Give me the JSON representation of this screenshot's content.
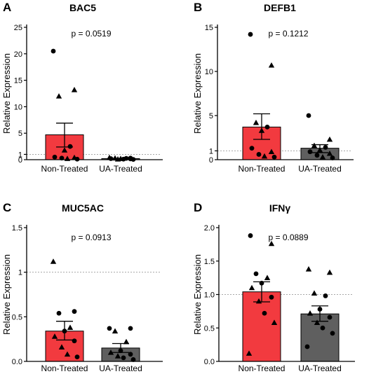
{
  "colors": {
    "non_treated_bar": "#f23a3f",
    "ua_treated_bar": "#5f5f5f",
    "ref_line": "#a8a8a8",
    "axis": "#000000"
  },
  "chart_data": [
    {
      "panel": "A",
      "type": "bar",
      "title": "BAC5",
      "ylabel": "Relative Expression",
      "pvalue": "p = 0.0519",
      "categories": [
        "Non-Treated",
        "UA-Treated"
      ],
      "ylim": [
        0,
        25
      ],
      "yticks": [
        0,
        1,
        5,
        10,
        15,
        20,
        25
      ],
      "reference_line": 1,
      "bars": [
        {
          "category": "Non-Treated",
          "mean": 4.7,
          "sem_low": 2.4,
          "sem_high": 6.9,
          "points": [
            {
              "y": 20.5,
              "shape": "circle"
            },
            {
              "y": 13.2,
              "shape": "triangle"
            },
            {
              "y": 12.0,
              "shape": "triangle"
            },
            {
              "y": 2.5,
              "shape": "circle"
            },
            {
              "y": 1.8,
              "shape": "triangle"
            },
            {
              "y": 0.5,
              "shape": "circle"
            },
            {
              "y": 0.4,
              "shape": "triangle"
            },
            {
              "y": 0.3,
              "shape": "circle"
            },
            {
              "y": 0.2,
              "shape": "triangle"
            },
            {
              "y": 0.1,
              "shape": "circle"
            }
          ]
        },
        {
          "category": "UA-Treated",
          "mean": 0.2,
          "sem_low": 0.15,
          "sem_high": 0.25,
          "points": [
            {
              "y": 0.4,
              "shape": "triangle"
            },
            {
              "y": 0.3,
              "shape": "circle"
            },
            {
              "y": 0.3,
              "shape": "triangle"
            },
            {
              "y": 0.25,
              "shape": "circle"
            },
            {
              "y": 0.2,
              "shape": "triangle"
            },
            {
              "y": 0.2,
              "shape": "circle"
            },
            {
              "y": 0.15,
              "shape": "circle"
            },
            {
              "y": 0.1,
              "shape": "triangle"
            },
            {
              "y": 0.1,
              "shape": "circle"
            },
            {
              "y": 0.05,
              "shape": "circle"
            }
          ]
        }
      ]
    },
    {
      "panel": "B",
      "type": "bar",
      "title": "DEFB1",
      "ylabel": "Relative Expression",
      "pvalue": "p = 0.1212",
      "categories": [
        "Non-Treated",
        "UA-Treated"
      ],
      "ylim": [
        0,
        15
      ],
      "yticks": [
        0,
        1,
        5,
        10,
        15
      ],
      "reference_line": 1,
      "bars": [
        {
          "category": "Non-Treated",
          "mean": 3.7,
          "sem_low": 2.3,
          "sem_high": 5.2,
          "points": [
            {
              "y": 14.2,
              "shape": "circle"
            },
            {
              "y": 10.7,
              "shape": "triangle"
            },
            {
              "y": 4.2,
              "shape": "triangle"
            },
            {
              "y": 3.7,
              "shape": "circle"
            },
            {
              "y": 3.3,
              "shape": "triangle"
            },
            {
              "y": 1.3,
              "shape": "circle"
            },
            {
              "y": 0.9,
              "shape": "triangle"
            },
            {
              "y": 0.6,
              "shape": "circle"
            },
            {
              "y": 0.4,
              "shape": "triangle"
            },
            {
              "y": 0.3,
              "shape": "circle"
            }
          ]
        },
        {
          "category": "UA-Treated",
          "mean": 1.3,
          "sem_low": 0.8,
          "sem_high": 1.7,
          "points": [
            {
              "y": 5.0,
              "shape": "circle"
            },
            {
              "y": 2.3,
              "shape": "triangle"
            },
            {
              "y": 1.6,
              "shape": "triangle"
            },
            {
              "y": 1.4,
              "shape": "circle"
            },
            {
              "y": 1.1,
              "shape": "triangle"
            },
            {
              "y": 0.9,
              "shape": "circle"
            },
            {
              "y": 0.7,
              "shape": "triangle"
            },
            {
              "y": 0.5,
              "shape": "circle"
            },
            {
              "y": 0.3,
              "shape": "triangle"
            },
            {
              "y": 0.2,
              "shape": "circle"
            }
          ]
        }
      ]
    },
    {
      "panel": "C",
      "type": "bar",
      "title": "MUC5AC",
      "ylabel": "Relative Expression",
      "pvalue": "p = 0.0913",
      "categories": [
        "Non-Treated",
        "UA-Treated"
      ],
      "ylim": [
        0,
        1.5
      ],
      "yticks": [
        0.0,
        0.5,
        1.0,
        1.5
      ],
      "yticklabels": [
        "0.0",
        "0.5",
        "1",
        "1.5"
      ],
      "reference_line": 1,
      "bars": [
        {
          "category": "Non-Treated",
          "mean": 0.34,
          "sem_low": 0.24,
          "sem_high": 0.45,
          "points": [
            {
              "y": 1.12,
              "shape": "triangle"
            },
            {
              "y": 0.56,
              "shape": "circle"
            },
            {
              "y": 0.54,
              "shape": "circle"
            },
            {
              "y": 0.38,
              "shape": "triangle"
            },
            {
              "y": 0.34,
              "shape": "circle"
            },
            {
              "y": 0.28,
              "shape": "triangle"
            },
            {
              "y": 0.23,
              "shape": "circle"
            },
            {
              "y": 0.16,
              "shape": "triangle"
            },
            {
              "y": 0.08,
              "shape": "triangle"
            },
            {
              "y": 0.05,
              "shape": "circle"
            }
          ]
        },
        {
          "category": "UA-Treated",
          "mean": 0.15,
          "sem_low": 0.1,
          "sem_high": 0.2,
          "points": [
            {
              "y": 0.37,
              "shape": "circle"
            },
            {
              "y": 0.37,
              "shape": "circle"
            },
            {
              "y": 0.34,
              "shape": "triangle"
            },
            {
              "y": 0.22,
              "shape": "triangle"
            },
            {
              "y": 0.12,
              "shape": "circle"
            },
            {
              "y": 0.1,
              "shape": "triangle"
            },
            {
              "y": 0.08,
              "shape": "circle"
            },
            {
              "y": 0.06,
              "shape": "triangle"
            },
            {
              "y": 0.04,
              "shape": "circle"
            },
            {
              "y": 0.02,
              "shape": "circle"
            }
          ]
        }
      ]
    },
    {
      "panel": "D",
      "type": "bar",
      "title": "IFNγ",
      "ylabel": "Relative Expression",
      "pvalue": "p = 0.0889",
      "categories": [
        "Non-Treated",
        "UA-Treated"
      ],
      "ylim": [
        0,
        2.0
      ],
      "yticks": [
        0.0,
        0.5,
        1.0,
        1.5,
        2.0
      ],
      "yticklabels": [
        "0.0",
        "0.5",
        "1.0",
        "1.5",
        "2.0"
      ],
      "reference_line": 1,
      "bars": [
        {
          "category": "Non-Treated",
          "mean": 1.04,
          "sem_low": 0.89,
          "sem_high": 1.19,
          "points": [
            {
              "y": 1.88,
              "shape": "circle"
            },
            {
              "y": 1.76,
              "shape": "triangle"
            },
            {
              "y": 1.31,
              "shape": "circle"
            },
            {
              "y": 1.25,
              "shape": "triangle"
            },
            {
              "y": 1.17,
              "shape": "circle"
            },
            {
              "y": 1.1,
              "shape": "triangle"
            },
            {
              "y": 0.96,
              "shape": "circle"
            },
            {
              "y": 0.9,
              "shape": "triangle"
            },
            {
              "y": 0.72,
              "shape": "circle"
            },
            {
              "y": 0.58,
              "shape": "triangle"
            },
            {
              "y": 0.12,
              "shape": "triangle"
            }
          ]
        },
        {
          "category": "UA-Treated",
          "mean": 0.71,
          "sem_low": 0.6,
          "sem_high": 0.83,
          "points": [
            {
              "y": 1.38,
              "shape": "triangle"
            },
            {
              "y": 1.33,
              "shape": "triangle"
            },
            {
              "y": 1.02,
              "shape": "triangle"
            },
            {
              "y": 0.98,
              "shape": "circle"
            },
            {
              "y": 0.78,
              "shape": "circle"
            },
            {
              "y": 0.72,
              "shape": "triangle"
            },
            {
              "y": 0.66,
              "shape": "circle"
            },
            {
              "y": 0.58,
              "shape": "triangle"
            },
            {
              "y": 0.5,
              "shape": "circle"
            },
            {
              "y": 0.42,
              "shape": "circle"
            },
            {
              "y": 0.22,
              "shape": "circle"
            }
          ]
        }
      ]
    }
  ]
}
